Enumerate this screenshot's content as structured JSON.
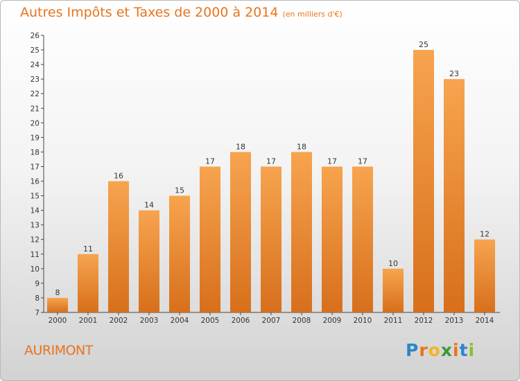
{
  "title": "Autres Impôts et Taxes de 2000 à 2014",
  "subtitle": "(en milliers d'€)",
  "location": "AURIMONT",
  "logo": {
    "letters": [
      "P",
      "r",
      "o",
      "x",
      "i",
      "t",
      "i"
    ],
    "colors": [
      "#2b86c9",
      "#e8741c",
      "#f2b51d",
      "#3a9a3a",
      "#e8741c",
      "#2b86c9",
      "#8cbf2a"
    ]
  },
  "colors": {
    "bar_light": "#f7a44f",
    "bar_dark": "#d76f1b",
    "accent": "#e8741c"
  },
  "chart_data": {
    "type": "bar",
    "categories": [
      "2000",
      "2001",
      "2002",
      "2003",
      "2004",
      "2005",
      "2006",
      "2007",
      "2008",
      "2009",
      "2010",
      "2011",
      "2012",
      "2013",
      "2014"
    ],
    "values": [
      8,
      11,
      16,
      14,
      15,
      17,
      18,
      17,
      18,
      17,
      17,
      10,
      25,
      23,
      12
    ],
    "ylim": [
      7,
      26
    ],
    "yticks": [
      7,
      8,
      9,
      10,
      11,
      12,
      13,
      14,
      15,
      16,
      17,
      18,
      19,
      20,
      21,
      22,
      23,
      24,
      25,
      26
    ],
    "grid": false,
    "data_labels": true
  }
}
